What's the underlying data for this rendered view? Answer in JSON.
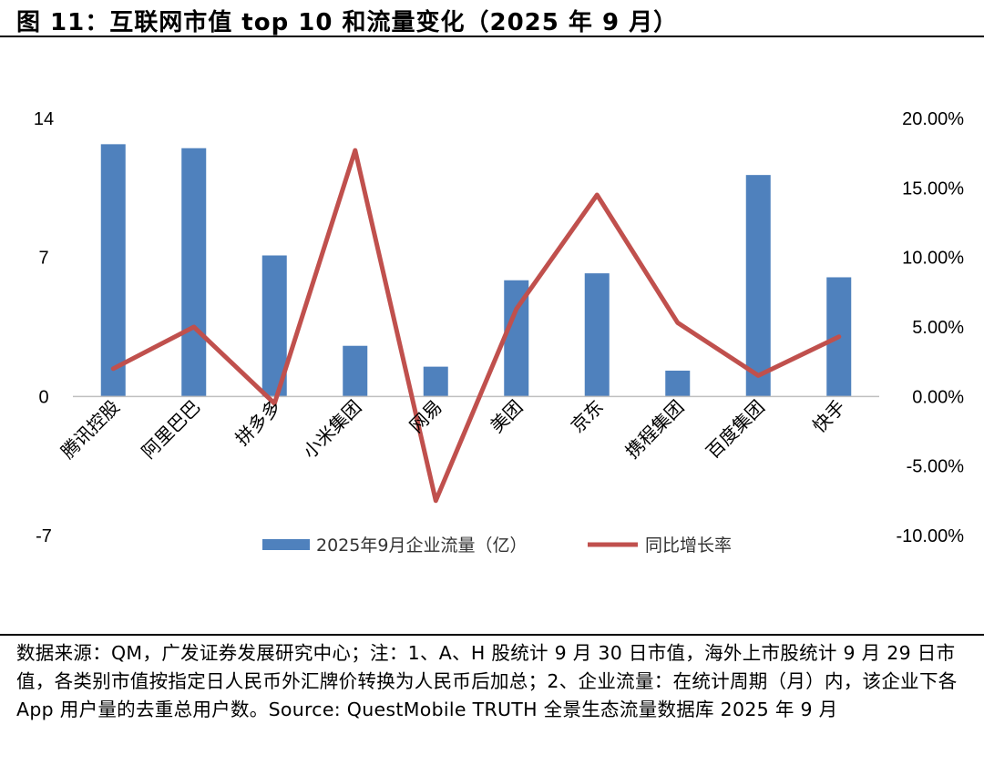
{
  "title": "图 11：互联网市值 top 10 和流量变化（2025 年 9 月）",
  "footnote": "数据来源：QM，广发证券发展研究中心；注：1、A、H 股统计 9 月 30 日市值，海外上市股统计 9 月 29 日市值，各类别市值按指定日人民币外汇牌价转换为人民币后加总；2、企业流量：在统计周期（月）内，该企业下各 App 用户量的去重总用户数。Source: QuestMobile TRUTH 全景生态流量数据库 2025 年 9 月",
  "colors": {
    "bar": "#4F81BD",
    "line": "#C0504D",
    "axis": "#BFBFBF"
  },
  "chart_data": {
    "type": "bar+line",
    "categories": [
      "腾讯控股",
      "阿里巴巴",
      "拼多多",
      "小米集团",
      "网易",
      "美团",
      "京东",
      "携程集团",
      "百度集团",
      "快手"
    ],
    "series": [
      {
        "name": "2025年9月企业流量（亿）",
        "type": "bar",
        "axis": "left",
        "values": [
          12.7,
          12.5,
          7.1,
          2.55,
          1.5,
          5.85,
          6.2,
          1.3,
          11.15,
          6.0
        ]
      },
      {
        "name": "同比增长率",
        "type": "line",
        "axis": "right",
        "unit": "%",
        "values": [
          2.0,
          5.0,
          -0.5,
          17.7,
          -7.5,
          6.3,
          14.5,
          5.3,
          1.5,
          4.3
        ]
      }
    ],
    "y_left": {
      "range": [
        -7,
        14
      ],
      "ticks": [
        "14",
        "7",
        "0",
        "-7"
      ],
      "tick_values": [
        14,
        7,
        0,
        -7
      ]
    },
    "y_right": {
      "range": [
        -10,
        20
      ],
      "ticks": [
        "20.00%",
        "15.00%",
        "10.00%",
        "5.00%",
        "0.00%",
        "-5.00%",
        "-10.00%"
      ],
      "tick_values": [
        20,
        15,
        10,
        5,
        0,
        -5,
        -10
      ]
    },
    "grid": false,
    "legend_position": "bottom"
  }
}
